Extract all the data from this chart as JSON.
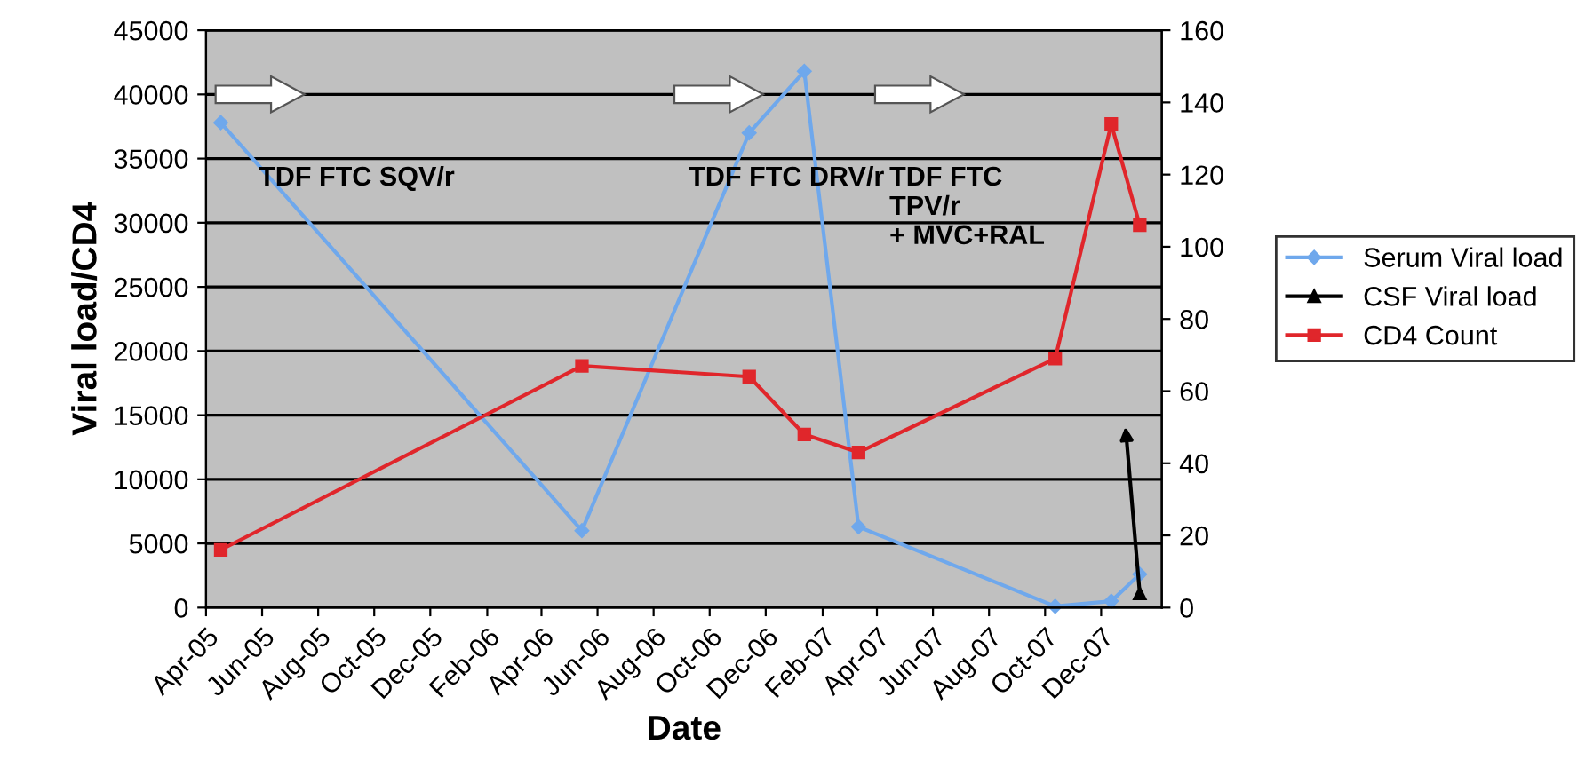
{
  "chart_data": {
    "type": "line",
    "xlabel": "Date",
    "ylabel": "Viral load/CD4",
    "x": [
      "2005-04-17",
      "2006-05-15",
      "2006-11-13",
      "2007-01-12",
      "2007-03-12",
      "2007-10-12",
      "2007-12-12",
      "2008-01-12"
    ],
    "series": [
      {
        "name": "Serum Viral load",
        "color": "#6fa8ec",
        "marker": "diamond",
        "values": [
          37800,
          6000,
          37000,
          41800,
          6300,
          100,
          500,
          2600
        ]
      },
      {
        "name": "CSF Viral load",
        "color": "#000000",
        "marker": "triangle",
        "x": [
          "2008-01-12"
        ],
        "values": [
          1100
        ]
      },
      {
        "name": "CD4 Count",
        "color": "#e0262b",
        "marker": "square",
        "axis": "y2",
        "values": [
          16,
          67,
          64,
          48,
          43,
          69,
          134,
          106
        ]
      }
    ],
    "xlim": [
      "2005-04-01",
      "2008-02-05"
    ],
    "xticks": [
      {
        "value": "2005-04-01",
        "label": "Apr-05"
      },
      {
        "value": "2005-06-01",
        "label": "Jun-05"
      },
      {
        "value": "2005-08-01",
        "label": "Aug-05"
      },
      {
        "value": "2005-10-01",
        "label": "Oct-05"
      },
      {
        "value": "2005-12-01",
        "label": "Dec-05"
      },
      {
        "value": "2006-02-01",
        "label": "Feb-06"
      },
      {
        "value": "2006-04-01",
        "label": "Apr-06"
      },
      {
        "value": "2006-06-01",
        "label": "Jun-06"
      },
      {
        "value": "2006-08-01",
        "label": "Aug-06"
      },
      {
        "value": "2006-10-01",
        "label": "Oct-06"
      },
      {
        "value": "2006-12-01",
        "label": "Dec-06"
      },
      {
        "value": "2007-02-01",
        "label": "Feb-07"
      },
      {
        "value": "2007-04-01",
        "label": "Apr-07"
      },
      {
        "value": "2007-06-01",
        "label": "Jun-07"
      },
      {
        "value": "2007-08-01",
        "label": "Aug-07"
      },
      {
        "value": "2007-10-01",
        "label": "Oct-07"
      },
      {
        "value": "2007-12-01",
        "label": "Dec-07"
      }
    ],
    "ylim": [
      0,
      45000
    ],
    "yticks": [
      0,
      5000,
      10000,
      15000,
      20000,
      25000,
      30000,
      35000,
      40000,
      45000
    ],
    "y2lim": [
      0,
      160
    ],
    "y2ticks": [
      0,
      20,
      40,
      60,
      80,
      100,
      120,
      140,
      160
    ],
    "grid": "y",
    "legend": "right",
    "line_style": "solid",
    "annotations": [
      "TDF FTC SQV/r",
      "TDF FTC DRV/r",
      "TDF FTC\nTPV/r\n+ MVC+RAL"
    ]
  }
}
